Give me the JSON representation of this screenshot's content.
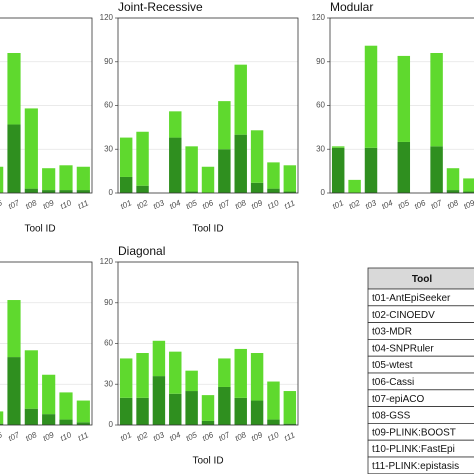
{
  "chart_data": [
    {
      "type": "bar",
      "stacked": true,
      "x_label": "Tool ID",
      "categories": [
        "t06",
        "t07",
        "t08",
        "t09",
        "t10",
        "t11"
      ],
      "series": [
        {
          "color": "#2f8f1f",
          "values": [
            0,
            47,
            3,
            2,
            2,
            2
          ]
        },
        {
          "color": "#5fd92e",
          "values": [
            18,
            49,
            55,
            15,
            17,
            16
          ]
        }
      ],
      "ylim": [
        0,
        120
      ],
      "yticks": [
        0,
        30,
        60,
        90,
        120
      ],
      "grid": true
    },
    {
      "type": "bar",
      "stacked": true,
      "title": "Joint-Recessive",
      "x_label": "Tool ID",
      "categories": [
        "t01",
        "t02",
        "t03",
        "t04",
        "t05",
        "t06",
        "t07",
        "t08",
        "t09",
        "t10",
        "t11"
      ],
      "series": [
        {
          "color": "#2f8f1f",
          "values": [
            11,
            5,
            0,
            38,
            1,
            0,
            30,
            40,
            7,
            3,
            1
          ]
        },
        {
          "color": "#5fd92e",
          "values": [
            27,
            37,
            0,
            18,
            31,
            18,
            33,
            48,
            36,
            18,
            18
          ]
        }
      ],
      "ylim": [
        0,
        120
      ],
      "yticks": [
        0,
        30,
        60,
        90,
        120
      ],
      "grid": true
    },
    {
      "type": "bar",
      "stacked": true,
      "title": "Modular",
      "categories": [
        "t01",
        "t02",
        "t03",
        "t04",
        "t05",
        "t06",
        "t07",
        "t08",
        "t09"
      ],
      "series": [
        {
          "color": "#2f8f1f",
          "values": [
            31,
            0,
            31,
            0,
            35,
            0,
            32,
            2,
            1
          ]
        },
        {
          "color": "#5fd92e",
          "values": [
            1,
            9,
            70,
            0,
            59,
            0,
            64,
            15,
            9
          ]
        }
      ],
      "ylim": [
        0,
        120
      ],
      "yticks": [
        0,
        30,
        60,
        90,
        120
      ],
      "grid": true
    },
    {
      "type": "bar",
      "stacked": true,
      "categories": [
        "t06",
        "t07",
        "t08",
        "t09",
        "t10",
        "t11"
      ],
      "series": [
        {
          "color": "#2f8f1f",
          "values": [
            1,
            50,
            12,
            8,
            4,
            2
          ]
        },
        {
          "color": "#5fd92e",
          "values": [
            9,
            42,
            43,
            29,
            20,
            16
          ]
        }
      ],
      "ylim": [
        0,
        120
      ],
      "yticks": [
        0,
        30,
        60,
        90,
        120
      ],
      "grid": true
    },
    {
      "type": "bar",
      "stacked": true,
      "title": "Diagonal",
      "x_label": "Tool ID",
      "categories": [
        "t01",
        "t02",
        "t03",
        "t04",
        "t05",
        "t06",
        "t07",
        "t08",
        "t09",
        "t10",
        "t11"
      ],
      "series": [
        {
          "color": "#2f8f1f",
          "values": [
            20,
            20,
            36,
            23,
            25,
            3,
            28,
            20,
            18,
            4,
            1
          ]
        },
        {
          "color": "#5fd92e",
          "values": [
            29,
            33,
            26,
            31,
            15,
            19,
            21,
            36,
            35,
            28,
            24
          ]
        }
      ],
      "ylim": [
        0,
        120
      ],
      "yticks": [
        0,
        30,
        60,
        90,
        120
      ],
      "grid": true
    }
  ],
  "table": {
    "header": "Tool",
    "rows": [
      "t01-AntEpiSeeker",
      "t02-CINOEDV",
      "t03-MDR",
      "t04-SNPRuler",
      "t05-wtest",
      "t06-Cassi",
      "t07-epiACO",
      "t08-GSS",
      "t09-PLINK:BOOST",
      "t10-PLINK:FastEpi",
      "t11-PLINK:epistasis"
    ]
  }
}
